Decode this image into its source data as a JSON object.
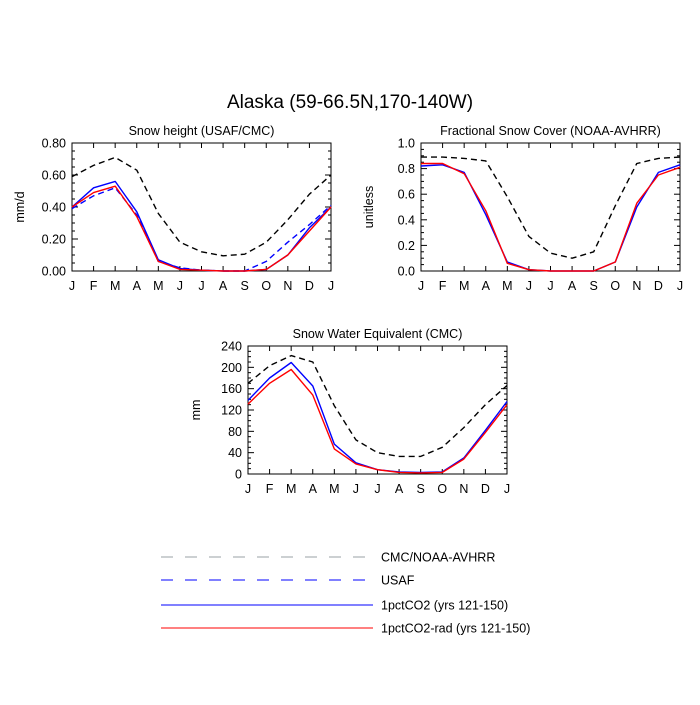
{
  "figure": {
    "title": "Alaska (59-66.5N,170-140W)"
  },
  "colors": {
    "obs": "#000000",
    "usaf": "#0000ff",
    "pct": "#0000ff",
    "rad": "#ff0000",
    "legend_obs": "#9aa0a6",
    "legend_usaf": "#0000ff",
    "legend_pct": "#0000ff",
    "legend_rad": "#ff0000"
  },
  "legend": {
    "placement": "bottom-center",
    "items": [
      {
        "key": "obs",
        "label": "CMC/NOAA-AVHRR",
        "dashed": true
      },
      {
        "key": "usaf",
        "label": "USAF",
        "dashed": true
      },
      {
        "key": "pct",
        "label": "1pctCO2 (yrs 121-150)",
        "dashed": false
      },
      {
        "key": "rad",
        "label": "1pctCO2-rad (yrs 121-150)",
        "dashed": false
      }
    ]
  },
  "chart_data": [
    {
      "id": "snow-height",
      "type": "line",
      "title": "Snow height (USAF/CMC)",
      "xlabel": "",
      "ylabel": "mm/d",
      "categories": [
        "J",
        "F",
        "M",
        "A",
        "M",
        "J",
        "J",
        "A",
        "S",
        "O",
        "N",
        "D",
        "J"
      ],
      "ylim": [
        0,
        0.8
      ],
      "yticks": [
        0,
        0.2,
        0.4,
        0.6,
        0.8
      ],
      "ytick_labels": [
        "0.00",
        "0.20",
        "0.40",
        "0.60",
        "0.80"
      ],
      "grid": false,
      "series": [
        {
          "key": "obs",
          "dashed": true,
          "values": [
            0.59,
            0.66,
            0.71,
            0.63,
            0.36,
            0.18,
            0.12,
            0.095,
            0.105,
            0.18,
            0.32,
            0.48,
            0.6
          ]
        },
        {
          "key": "usaf",
          "dashed": true,
          "values": [
            0.39,
            0.47,
            0.52,
            0.35,
            0.06,
            0.02,
            0.005,
            0.0,
            0.0,
            0.06,
            0.18,
            0.29,
            0.41
          ]
        },
        {
          "key": "pct",
          "dashed": false,
          "values": [
            0.4,
            0.52,
            0.56,
            0.37,
            0.07,
            0.015,
            0.005,
            0.0,
            0.0,
            0.01,
            0.1,
            0.27,
            0.4
          ]
        },
        {
          "key": "rad",
          "dashed": false,
          "values": [
            0.4,
            0.49,
            0.53,
            0.34,
            0.06,
            0.01,
            0.005,
            0.0,
            0.0,
            0.01,
            0.1,
            0.25,
            0.4
          ]
        }
      ]
    },
    {
      "id": "fractional-snow-cover",
      "type": "line",
      "title": "Fractional Snow Cover (NOAA-AVHRR)",
      "xlabel": "",
      "ylabel": "unitless",
      "categories": [
        "J",
        "F",
        "M",
        "A",
        "M",
        "J",
        "J",
        "A",
        "S",
        "O",
        "N",
        "D",
        "J"
      ],
      "ylim": [
        0,
        1.0
      ],
      "yticks": [
        0,
        0.2,
        0.4,
        0.6,
        0.8,
        1.0
      ],
      "ytick_labels": [
        "0.0",
        "0.2",
        "0.4",
        "0.6",
        "0.8",
        "1.0"
      ],
      "grid": false,
      "series": [
        {
          "key": "obs",
          "dashed": true,
          "values": [
            0.89,
            0.89,
            0.88,
            0.86,
            0.58,
            0.27,
            0.14,
            0.1,
            0.15,
            0.51,
            0.84,
            0.88,
            0.89
          ]
        },
        {
          "key": "pct",
          "dashed": false,
          "values": [
            0.82,
            0.83,
            0.77,
            0.44,
            0.07,
            0.01,
            0.0,
            0.0,
            0.0,
            0.07,
            0.5,
            0.77,
            0.83
          ]
        },
        {
          "key": "rad",
          "dashed": false,
          "values": [
            0.84,
            0.84,
            0.76,
            0.47,
            0.06,
            0.01,
            0.0,
            0.0,
            0.0,
            0.07,
            0.53,
            0.75,
            0.81
          ]
        }
      ]
    },
    {
      "id": "snow-water-equivalent",
      "type": "line",
      "title": "Snow Water Equivalent (CMC)",
      "xlabel": "",
      "ylabel": "mm",
      "categories": [
        "J",
        "F",
        "M",
        "A",
        "M",
        "J",
        "J",
        "A",
        "S",
        "O",
        "N",
        "D",
        "J"
      ],
      "ylim": [
        0,
        240
      ],
      "yticks": [
        0,
        40,
        80,
        120,
        160,
        200,
        240
      ],
      "ytick_labels": [
        "0",
        "40",
        "80",
        "120",
        "160",
        "200",
        "240"
      ],
      "grid": false,
      "series": [
        {
          "key": "obs",
          "dashed": true,
          "values": [
            170,
            203,
            222,
            210,
            128,
            64,
            40,
            33,
            33,
            50,
            87,
            130,
            166
          ]
        },
        {
          "key": "pct",
          "dashed": false,
          "values": [
            138,
            180,
            209,
            165,
            56,
            21,
            8,
            4,
            3,
            4,
            30,
            82,
            136
          ]
        },
        {
          "key": "rad",
          "dashed": false,
          "values": [
            131,
            170,
            196,
            148,
            47,
            19,
            8,
            3,
            2,
            3,
            28,
            78,
            130
          ]
        }
      ]
    }
  ]
}
